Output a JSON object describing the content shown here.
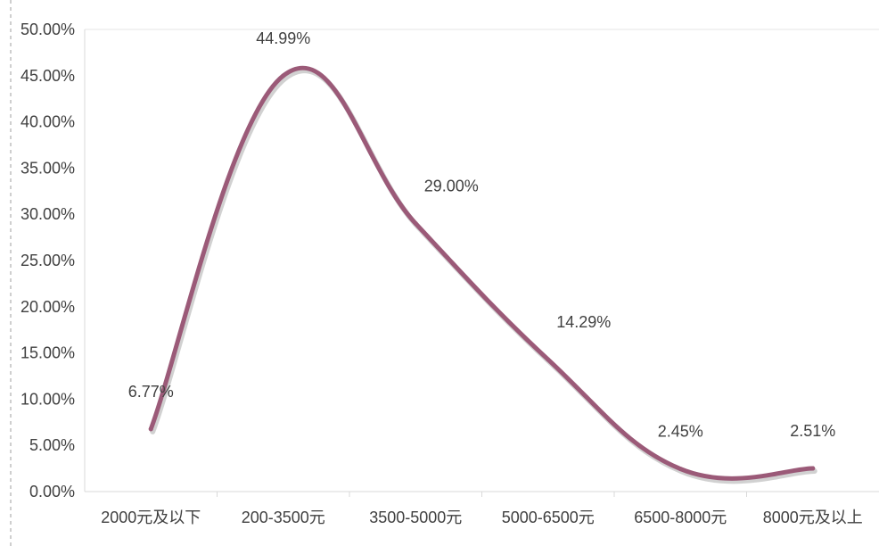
{
  "chart_data": {
    "type": "line",
    "categories": [
      "2000元及以下",
      "200-3500元",
      "3500-5000元",
      "5000-6500元",
      "6500-8000元",
      "8000元及以上"
    ],
    "series": [
      {
        "values": [
          6.77,
          44.99,
          29.0,
          14.29,
          2.45,
          2.51
        ]
      }
    ],
    "data_labels": [
      "6.77%",
      "44.99%",
      "29.00%",
      "14.29%",
      "2.45%",
      "2.51%"
    ],
    "y_ticks": [
      "0.00%",
      "5.00%",
      "10.00%",
      "15.00%",
      "20.00%",
      "25.00%",
      "30.00%",
      "35.00%",
      "40.00%",
      "45.00%",
      "50.00%"
    ],
    "ylim": [
      0,
      50
    ],
    "smooth": true,
    "grid": false,
    "line_color": "#9b5a78",
    "axis_color": "#d9d9d9",
    "text_color": "#404040"
  }
}
